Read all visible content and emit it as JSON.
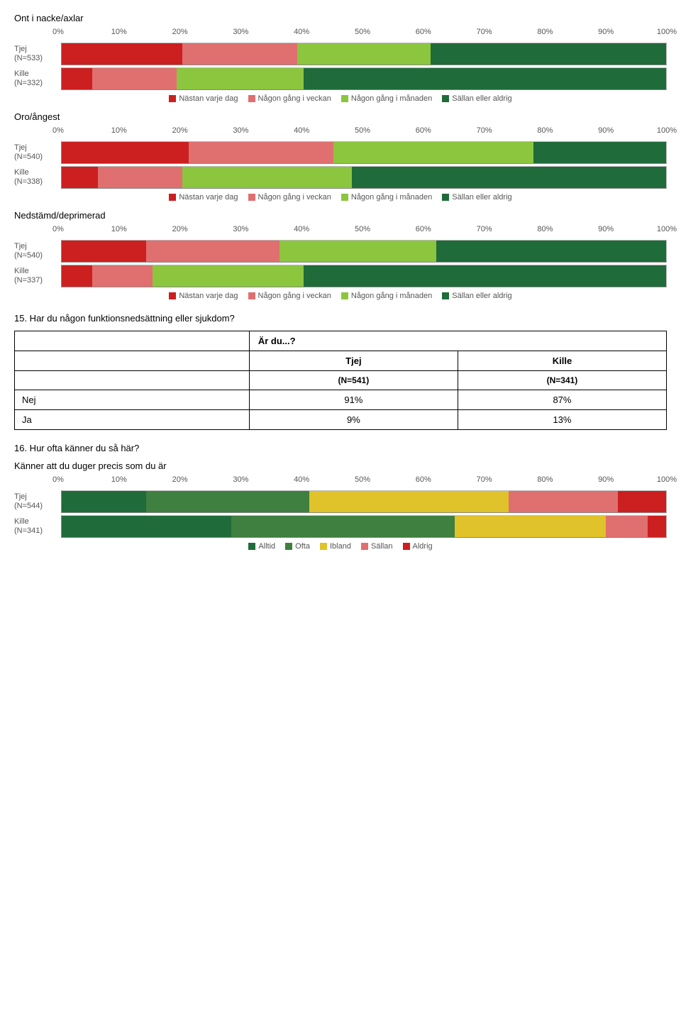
{
  "colors": {
    "red": "#cc1f1f",
    "pink": "#e06f6f",
    "lime": "#8bc63e",
    "dark_green": "#1f6b3a",
    "olive_green": "#3f7f3f",
    "yellow": "#e0c22a"
  },
  "axis_ticks": [
    "0%",
    "10%",
    "20%",
    "30%",
    "40%",
    "50%",
    "60%",
    "70%",
    "80%",
    "90%",
    "100%"
  ],
  "legend4": {
    "items": [
      {
        "label": "Nästan varje dag",
        "colorKey": "red"
      },
      {
        "label": "Någon gång i veckan",
        "colorKey": "pink"
      },
      {
        "label": "Någon gång i månaden",
        "colorKey": "lime"
      },
      {
        "label": "Sällan eller aldrig",
        "colorKey": "dark_green"
      }
    ]
  },
  "legend5": {
    "items": [
      {
        "label": "Alltid",
        "colorKey": "dark_green"
      },
      {
        "label": "Ofta",
        "colorKey": "olive_green"
      },
      {
        "label": "Ibland",
        "colorKey": "yellow"
      },
      {
        "label": "Sällan",
        "colorKey": "pink"
      },
      {
        "label": "Aldrig",
        "colorKey": "red"
      }
    ]
  },
  "chart1": {
    "title": "Ont i nacke/axlar",
    "rows": [
      {
        "label1": "Tjej",
        "label2": "(N=533)",
        "segs": [
          {
            "colorKey": "red",
            "pct": 20
          },
          {
            "colorKey": "pink",
            "pct": 19
          },
          {
            "colorKey": "lime",
            "pct": 22
          },
          {
            "colorKey": "dark_green",
            "pct": 39
          }
        ]
      },
      {
        "label1": "Kille",
        "label2": "(N=332)",
        "segs": [
          {
            "colorKey": "red",
            "pct": 5
          },
          {
            "colorKey": "pink",
            "pct": 14
          },
          {
            "colorKey": "lime",
            "pct": 21
          },
          {
            "colorKey": "dark_green",
            "pct": 60
          }
        ]
      }
    ]
  },
  "chart2": {
    "title": "Oro/ångest",
    "rows": [
      {
        "label1": "Tjej",
        "label2": "(N=540)",
        "segs": [
          {
            "colorKey": "red",
            "pct": 21
          },
          {
            "colorKey": "pink",
            "pct": 24
          },
          {
            "colorKey": "lime",
            "pct": 33
          },
          {
            "colorKey": "dark_green",
            "pct": 22
          }
        ]
      },
      {
        "label1": "Kille",
        "label2": "(N=338)",
        "segs": [
          {
            "colorKey": "red",
            "pct": 6
          },
          {
            "colorKey": "pink",
            "pct": 14
          },
          {
            "colorKey": "lime",
            "pct": 28
          },
          {
            "colorKey": "dark_green",
            "pct": 52
          }
        ]
      }
    ]
  },
  "chart3": {
    "title": "Nedstämd/deprimerad",
    "rows": [
      {
        "label1": "Tjej",
        "label2": "(N=540)",
        "segs": [
          {
            "colorKey": "red",
            "pct": 14
          },
          {
            "colorKey": "pink",
            "pct": 22
          },
          {
            "colorKey": "lime",
            "pct": 26
          },
          {
            "colorKey": "dark_green",
            "pct": 38
          }
        ]
      },
      {
        "label1": "Kille",
        "label2": "(N=337)",
        "segs": [
          {
            "colorKey": "red",
            "pct": 5
          },
          {
            "colorKey": "pink",
            "pct": 10
          },
          {
            "colorKey": "lime",
            "pct": 25
          },
          {
            "colorKey": "dark_green",
            "pct": 60
          }
        ]
      }
    ]
  },
  "q15": {
    "heading": "15. Har du någon funktionsnedsättning eller sjukdom?",
    "group_header": "Är du...?",
    "col1": "Tjej",
    "col2": "Kille",
    "n1": "(N=541)",
    "n2": "(N=341)",
    "rows": [
      {
        "label": "Nej",
        "v1": "91%",
        "v2": "87%"
      },
      {
        "label": "Ja",
        "v1": "9%",
        "v2": "13%"
      }
    ]
  },
  "q16": {
    "heading": "16. Hur ofta känner du så här?",
    "subtitle": "Känner att du duger precis som du är",
    "rows": [
      {
        "label1": "Tjej",
        "label2": "(N=544)",
        "segs": [
          {
            "colorKey": "dark_green",
            "pct": 14
          },
          {
            "colorKey": "olive_green",
            "pct": 27
          },
          {
            "colorKey": "yellow",
            "pct": 33
          },
          {
            "colorKey": "pink",
            "pct": 18
          },
          {
            "colorKey": "red",
            "pct": 8
          }
        ]
      },
      {
        "label1": "Kille",
        "label2": "(N=341)",
        "segs": [
          {
            "colorKey": "dark_green",
            "pct": 28
          },
          {
            "colorKey": "olive_green",
            "pct": 37
          },
          {
            "colorKey": "yellow",
            "pct": 25
          },
          {
            "colorKey": "pink",
            "pct": 7
          },
          {
            "colorKey": "red",
            "pct": 3
          }
        ]
      }
    ]
  }
}
